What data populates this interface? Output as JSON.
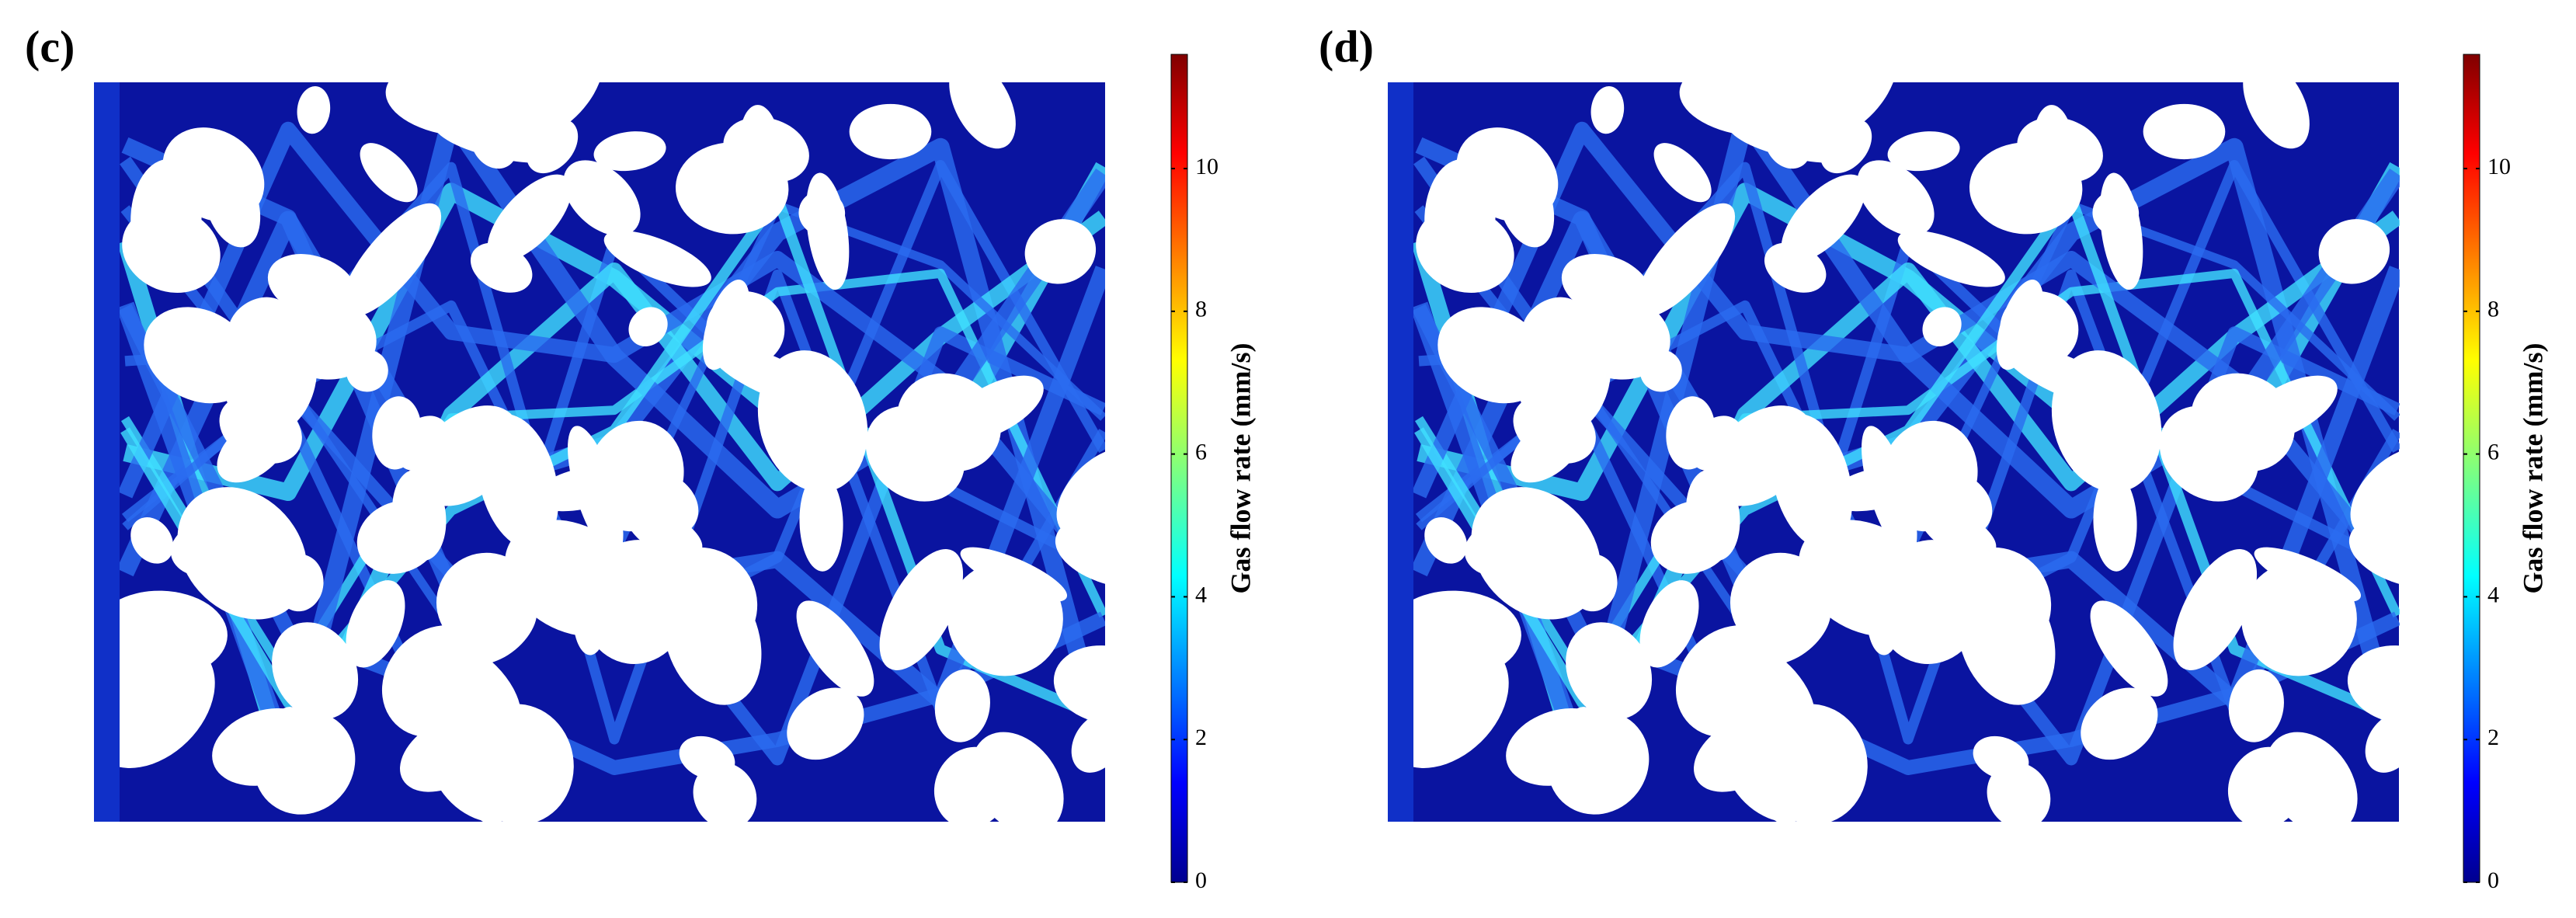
{
  "panels": [
    {
      "label": "(c)",
      "colorbar": {
        "title": "Gas flow rate (mm/s)",
        "range": [
          0,
          11.6
        ],
        "ticks": [
          0,
          2,
          4,
          6,
          8,
          10
        ]
      }
    },
    {
      "label": "(d)",
      "colorbar": {
        "title": "Gas flow rate (mm/s)",
        "range": [
          0,
          11.6
        ],
        "ticks": [
          0,
          2,
          4,
          6,
          8,
          10
        ]
      }
    }
  ]
}
